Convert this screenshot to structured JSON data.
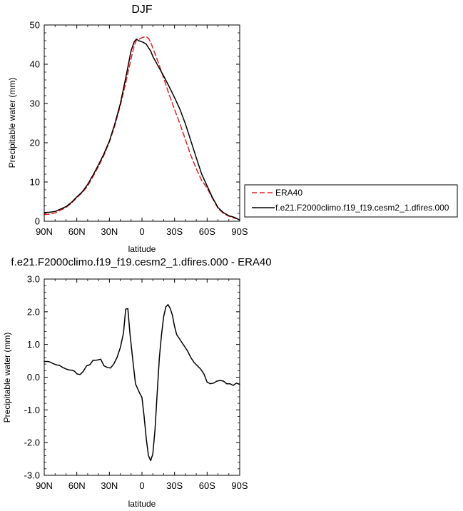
{
  "chart_data": [
    {
      "type": "line",
      "title": "DJF",
      "xlabel": "latitude",
      "ylabel": "Precipitable water (mm)",
      "xlim": [
        90,
        -90
      ],
      "ylim": [
        0,
        50
      ],
      "x_ticks": [
        90,
        60,
        30,
        0,
        -30,
        -60,
        -90
      ],
      "x_tick_labels": [
        "90N",
        "60N",
        "30N",
        "0",
        "30S",
        "60S",
        "90S"
      ],
      "y_ticks": [
        0,
        10,
        20,
        30,
        40,
        50
      ],
      "y_tick_labels": [
        "0",
        "10",
        "20",
        "30",
        "40",
        "50"
      ],
      "grid": false,
      "legend_position": "right",
      "series": [
        {
          "name": "ERA40",
          "color": "#e8201e",
          "dash": "dashed",
          "x": [
            90,
            85,
            80,
            75,
            70,
            65,
            60,
            55,
            50,
            45,
            40,
            35,
            30,
            25,
            20,
            15,
            10,
            7,
            5,
            3,
            1,
            -1,
            -4,
            -6,
            -8,
            -10,
            -15,
            -20,
            -25,
            -30,
            -35,
            -40,
            -45,
            -50,
            -55,
            -60,
            -65,
            -70,
            -75,
            -80,
            -85,
            -88,
            -90
          ],
          "y": [
            1.7,
            1.8,
            2.1,
            2.8,
            3.5,
            4.6,
            6.0,
            7.3,
            9.0,
            11.4,
            14.0,
            16.8,
            20.2,
            24.3,
            29.4,
            35.2,
            41.5,
            44.8,
            46.2,
            46.3,
            46.6,
            46.9,
            47.0,
            46.6,
            45.6,
            44.2,
            40.5,
            36.5,
            32.3,
            28.5,
            24.8,
            20.8,
            16.8,
            13.4,
            10.4,
            8.5,
            5.8,
            3.3,
            2.0,
            1.3,
            0.8,
            0.6,
            0.5
          ]
        },
        {
          "name": "f.e21.F2000climo.f19_f19.cesm2_1.dfires.000",
          "color": "#000000",
          "dash": "solid",
          "x": [
            90,
            85,
            80,
            75,
            70,
            65,
            60,
            55,
            50,
            45,
            40,
            35,
            30,
            25,
            20,
            15,
            10,
            7,
            5,
            3,
            1,
            -1,
            -4,
            -6,
            -8,
            -10,
            -15,
            -20,
            -25,
            -30,
            -35,
            -40,
            -45,
            -50,
            -55,
            -60,
            -65,
            -70,
            -75,
            -80,
            -85,
            -88,
            -90
          ],
          "y": [
            2.2,
            2.3,
            2.5,
            3.1,
            3.7,
            4.8,
            6.2,
            7.5,
            9.4,
            11.8,
            14.4,
            17.2,
            20.4,
            24.8,
            29.9,
            36.5,
            43.5,
            45.8,
            46.4,
            46.0,
            45.8,
            45.6,
            45.1,
            44.2,
            43.4,
            42.0,
            39.5,
            37.0,
            34.3,
            31.5,
            28.5,
            24.8,
            20.5,
            16.2,
            12.0,
            9.0,
            6.0,
            3.5,
            2.2,
            1.4,
            1.0,
            0.6,
            0.3
          ]
        }
      ]
    },
    {
      "type": "line",
      "title": "f.e21.F2000climo.f19_f19.cesm2_1.dfires.000 - ERA40",
      "xlabel": "latitude",
      "ylabel": "Precipitable water (mm)",
      "xlim": [
        90,
        -90
      ],
      "ylim": [
        -3,
        3
      ],
      "x_ticks": [
        90,
        60,
        30,
        0,
        -30,
        -60,
        -90
      ],
      "x_tick_labels": [
        "90N",
        "60N",
        "30N",
        "0",
        "30S",
        "60S",
        "90S"
      ],
      "y_ticks": [
        3,
        2,
        1,
        0,
        -1,
        -2,
        -3
      ],
      "y_tick_labels": [
        "3.0",
        "2.0",
        "1.0",
        "0.0",
        "-1.0",
        "-2.0",
        "-3.0"
      ],
      "grid": false,
      "series": [
        {
          "color": "#000000",
          "dash": "solid",
          "x": [
            90,
            87,
            85,
            82,
            79,
            76,
            73,
            70,
            67,
            64,
            62,
            60,
            57,
            54,
            51,
            48,
            45,
            42,
            38,
            35,
            32,
            29,
            26,
            23,
            20,
            17,
            15,
            13,
            11,
            8,
            6,
            4,
            2,
            0,
            -2,
            -4,
            -6,
            -8,
            -10,
            -12,
            -14,
            -16,
            -18,
            -20,
            -22,
            -24,
            -26,
            -28,
            -30,
            -32,
            -34,
            -36,
            -39,
            -42,
            -45,
            -48,
            -51,
            -54,
            -57,
            -60,
            -63,
            -66,
            -69,
            -72,
            -75,
            -78,
            -81,
            -84,
            -87,
            -90
          ],
          "y": [
            0.48,
            0.48,
            0.47,
            0.42,
            0.38,
            0.36,
            0.3,
            0.25,
            0.22,
            0.21,
            0.18,
            0.1,
            0.08,
            0.18,
            0.35,
            0.38,
            0.52,
            0.52,
            0.55,
            0.35,
            0.3,
            0.28,
            0.4,
            0.6,
            0.9,
            1.35,
            2.08,
            2.1,
            1.3,
            0.4,
            -0.2,
            -0.35,
            -0.5,
            -0.62,
            -1.2,
            -1.9,
            -2.4,
            -2.55,
            -2.35,
            -1.6,
            -0.5,
            0.6,
            1.3,
            1.85,
            2.15,
            2.22,
            2.1,
            1.9,
            1.55,
            1.3,
            1.2,
            1.1,
            0.95,
            0.8,
            0.6,
            0.45,
            0.35,
            0.25,
            0.1,
            -0.15,
            -0.2,
            -0.18,
            -0.12,
            -0.1,
            -0.12,
            -0.2,
            -0.2,
            -0.25,
            -0.18,
            -0.22
          ]
        }
      ]
    }
  ]
}
